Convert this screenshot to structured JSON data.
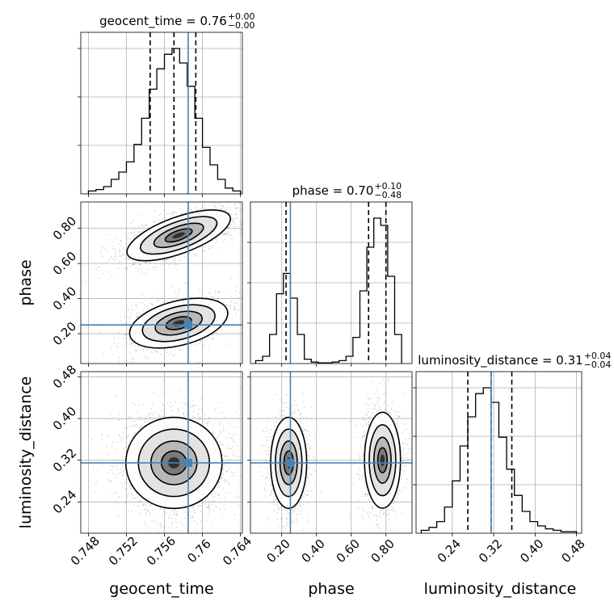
{
  "chart_data": {
    "type": "corner",
    "parameters": [
      "geocent_time",
      "phase",
      "luminosity_distance"
    ],
    "truth_color": "#4682b4",
    "grid": true,
    "panels": [
      {
        "id": "hist-geocent",
        "kind": "hist1d",
        "param": "geocent_time",
        "title": {
          "text": "geocent_time = 0.76",
          "sup": "+0.00",
          "sub": "−0.00"
        },
        "xlim": [
          0.7472,
          0.7642
        ],
        "ymax": 1.0,
        "bin_edges": [
          0.748,
          0.7488,
          0.7496,
          0.7504,
          0.7512,
          0.752,
          0.7528,
          0.7536,
          0.7544,
          0.7552,
          0.756,
          0.7568,
          0.7576,
          0.7584,
          0.7592,
          0.76,
          0.7608,
          0.7616,
          0.7624,
          0.7632,
          0.764
        ],
        "counts": [
          0.02,
          0.03,
          0.05,
          0.1,
          0.15,
          0.22,
          0.34,
          0.52,
          0.72,
          0.86,
          0.96,
          1.0,
          0.9,
          0.74,
          0.52,
          0.32,
          0.2,
          0.1,
          0.04,
          0.02
        ],
        "quantiles": [
          0.7545,
          0.757,
          0.7593
        ],
        "truth_x": 0.7585,
        "xticks": [
          0.748,
          0.752,
          0.756,
          0.76,
          0.764
        ],
        "yticks_frac": [
          0.3,
          0.6,
          0.9
        ]
      },
      {
        "id": "hist-phase",
        "kind": "hist1d",
        "param": "phase",
        "title": {
          "text": "phase = 0.70",
          "sup": "+0.10",
          "sub": "−0.48"
        },
        "xlim": [
          0.02,
          0.95
        ],
        "ymax": 1.0,
        "bin_edges": [
          0.05,
          0.09,
          0.13,
          0.17,
          0.21,
          0.25,
          0.29,
          0.33,
          0.37,
          0.41,
          0.45,
          0.49,
          0.53,
          0.57,
          0.61,
          0.65,
          0.69,
          0.73,
          0.77,
          0.81,
          0.85,
          0.89
        ],
        "counts": [
          0.02,
          0.05,
          0.2,
          0.48,
          0.62,
          0.45,
          0.2,
          0.03,
          0.01,
          0.005,
          0.005,
          0.01,
          0.02,
          0.05,
          0.18,
          0.5,
          0.8,
          1.0,
          0.95,
          0.6,
          0.2
        ],
        "quantiles": [
          0.225,
          0.7,
          0.8
        ],
        "truth_x": 0.25,
        "xticks": [
          0.2,
          0.4,
          0.6,
          0.8
        ],
        "yticks_frac": [
          0.25,
          0.5,
          0.75
        ]
      },
      {
        "id": "hist-lumdist",
        "kind": "hist1d",
        "param": "luminosity_distance",
        "title": {
          "text": "luminosity_distance = 0.31",
          "sup": "+0.04",
          "sub": "−0.04"
        },
        "xlim": [
          0.17,
          0.49
        ],
        "ymax": 1.0,
        "bin_edges": [
          0.18,
          0.195,
          0.21,
          0.225,
          0.24,
          0.255,
          0.27,
          0.285,
          0.3,
          0.315,
          0.33,
          0.345,
          0.36,
          0.375,
          0.39,
          0.405,
          0.42,
          0.435,
          0.45,
          0.465,
          0.48
        ],
        "counts": [
          0.02,
          0.04,
          0.08,
          0.18,
          0.36,
          0.6,
          0.8,
          0.96,
          1.0,
          0.9,
          0.66,
          0.44,
          0.26,
          0.15,
          0.08,
          0.05,
          0.03,
          0.02,
          0.01,
          0.01
        ],
        "quantiles": [
          0.27,
          0.315,
          0.355
        ],
        "truth_x": 0.315,
        "xticks": [
          0.24,
          0.32,
          0.4,
          0.48
        ],
        "yticks_frac": [
          0.3,
          0.6,
          0.9
        ]
      },
      {
        "id": "scatter-phase-vs-geocent",
        "kind": "density2d",
        "x_param": "geocent_time",
        "y_param": "phase",
        "xlim": [
          0.7472,
          0.7642
        ],
        "ylim": [
          0.03,
          0.95
        ],
        "truth": [
          0.7585,
          0.25
        ],
        "blobs": [
          {
            "cx": 0.7575,
            "cy": 0.76,
            "sx": 0.0025,
            "sy": 0.045,
            "rot": -0.35,
            "n": 1600
          },
          {
            "cx": 0.7575,
            "cy": 0.26,
            "sx": 0.0023,
            "sy": 0.055,
            "rot": -0.25,
            "n": 1200
          }
        ],
        "yticks": [
          0.2,
          0.4,
          0.6,
          0.8
        ],
        "xticks": [
          0.748,
          0.752,
          0.756,
          0.76,
          0.764
        ]
      },
      {
        "id": "scatter-lumdist-vs-geocent",
        "kind": "density2d",
        "x_param": "geocent_time",
        "y_param": "luminosity_distance",
        "xlim": [
          0.7472,
          0.7642
        ],
        "ylim": [
          0.18,
          0.49
        ],
        "truth": [
          0.7585,
          0.315
        ],
        "blobs": [
          {
            "cx": 0.757,
            "cy": 0.315,
            "sx": 0.0022,
            "sy": 0.038,
            "rot": 0.0,
            "n": 2600
          }
        ],
        "yticks": [
          0.24,
          0.32,
          0.4,
          0.48
        ],
        "xticks": [
          0.748,
          0.752,
          0.756,
          0.76,
          0.764
        ]
      },
      {
        "id": "scatter-lumdist-vs-phase",
        "kind": "density2d",
        "x_param": "phase",
        "y_param": "luminosity_distance",
        "xlim": [
          0.02,
          0.95
        ],
        "ylim": [
          0.18,
          0.49
        ],
        "truth": [
          0.25,
          0.315
        ],
        "blobs": [
          {
            "cx": 0.24,
            "cy": 0.315,
            "sx": 0.045,
            "sy": 0.038,
            "rot": 0.0,
            "n": 1300
          },
          {
            "cx": 0.78,
            "cy": 0.32,
            "sx": 0.045,
            "sy": 0.04,
            "rot": 0.0,
            "n": 1500
          }
        ],
        "yticks": [
          0.24,
          0.32,
          0.4,
          0.48
        ],
        "xticks": [
          0.2,
          0.4,
          0.6,
          0.8
        ]
      }
    ],
    "axis_labels": {
      "x": [
        "geocent_time",
        "phase",
        "luminosity_distance"
      ],
      "y": [
        "phase",
        "luminosity_distance"
      ]
    }
  }
}
